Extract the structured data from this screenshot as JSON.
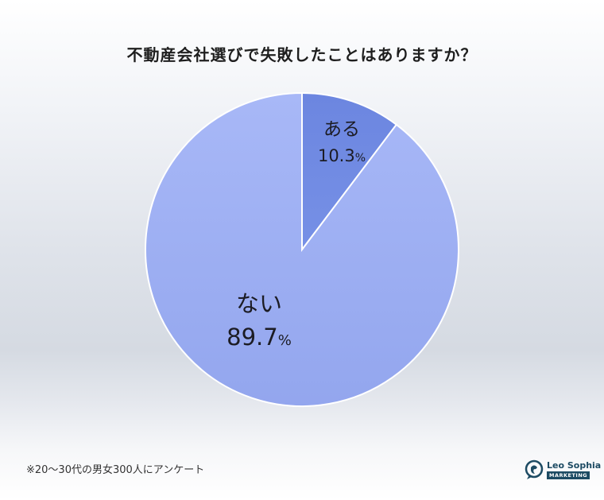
{
  "title": "不動産会社選びで失敗したことはありますか？",
  "note": "※20〜30代の男女300人にアンケート",
  "logo": {
    "name": "Leo Sophia",
    "sub": "MARKETING"
  },
  "chart_data": {
    "type": "pie",
    "title": "不動産会社選びで失敗したことはありますか？",
    "slices": [
      {
        "label": "ある",
        "value": 10.3,
        "display": "10.3",
        "unit": "%",
        "color": "#6f89e2"
      },
      {
        "label": "ない",
        "value": 89.7,
        "display": "89.7",
        "unit": "%",
        "color": "#9fb0f3"
      }
    ]
  }
}
